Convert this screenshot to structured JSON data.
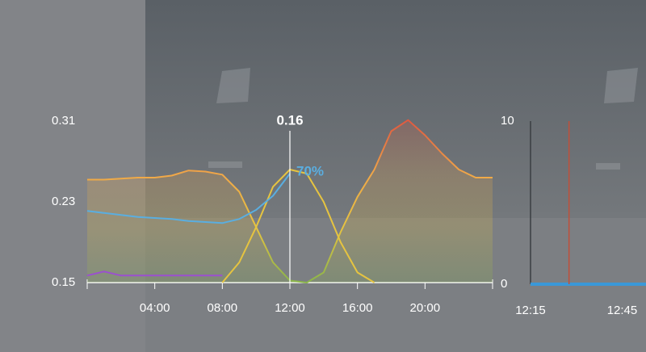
{
  "chart_data": [
    {
      "type": "line",
      "x": [
        0,
        1,
        2,
        3,
        4,
        5,
        6,
        7,
        8,
        9,
        10,
        11,
        12,
        13,
        14,
        15,
        16,
        17,
        18,
        19,
        20,
        21,
        22,
        23,
        24
      ],
      "xlim": [
        0,
        24
      ],
      "xticks": [
        {
          "value": 4,
          "label": "04:00"
        },
        {
          "value": 8,
          "label": "08:00"
        },
        {
          "value": 12,
          "label": "12:00"
        },
        {
          "value": 16,
          "label": "16:00"
        },
        {
          "value": 20,
          "label": "20:00"
        }
      ],
      "ylim": [
        0.15,
        0.31
      ],
      "yticks": [
        0.15,
        0.23,
        0.31
      ],
      "gradient": [
        "#8ab54a",
        "#e6c440",
        "#f0a848",
        "#e05a40"
      ],
      "series": [
        {
          "color": "#f0a848",
          "fill": true,
          "values": [
            0.252,
            0.252,
            0.253,
            0.254,
            0.254,
            0.256,
            0.261,
            0.26,
            0.257,
            0.24,
            0.205,
            0.17,
            0.152,
            0.15,
            0.16,
            0.2,
            0.235,
            0.262,
            0.3,
            0.311,
            0.296,
            0.278,
            0.262,
            0.254,
            0.254
          ]
        },
        {
          "color": "#e6c440",
          "fill": false,
          "values": [
            null,
            null,
            null,
            null,
            null,
            null,
            null,
            null,
            0.15,
            0.17,
            0.205,
            0.245,
            0.262,
            0.258,
            0.23,
            0.19,
            0.16,
            0.15,
            null,
            null,
            null,
            null,
            null,
            null,
            null
          ]
        },
        {
          "color": "#5aaee0",
          "fill": false,
          "values": [
            0.221,
            0.219,
            0.217,
            0.215,
            0.214,
            0.213,
            0.211,
            0.21,
            0.209,
            0.213,
            0.222,
            0.236,
            0.258,
            null,
            null,
            null,
            null,
            null,
            null,
            null,
            null,
            null,
            null,
            null,
            null
          ]
        },
        {
          "color": "#9b4fd0",
          "fill": false,
          "values": [
            0.157,
            0.161,
            0.157,
            0.157,
            0.157,
            0.157,
            0.157,
            0.157,
            0.157,
            null,
            null,
            null,
            null,
            null,
            null,
            null,
            null,
            null,
            null,
            null,
            null,
            null,
            null,
            null,
            null
          ]
        }
      ],
      "cursor": {
        "x": 12,
        "value": 0.16
      },
      "annotation": {
        "series": 2,
        "text": "70%"
      }
    },
    {
      "type": "line",
      "x": [
        12.25,
        12.88
      ],
      "xlim": [
        12.25,
        12.88
      ],
      "xticks": [
        {
          "value": 12.25,
          "label": "12:15"
        },
        {
          "value": 12.75,
          "label": "12:45"
        }
      ],
      "ylim": [
        0,
        10
      ],
      "yticks": [
        0,
        10
      ],
      "series": [
        {
          "color": "#3a98d8",
          "fill": false,
          "values": [
            0,
            0
          ]
        }
      ],
      "marker": {
        "x": 12.46,
        "color": "#c0503a"
      }
    }
  ]
}
